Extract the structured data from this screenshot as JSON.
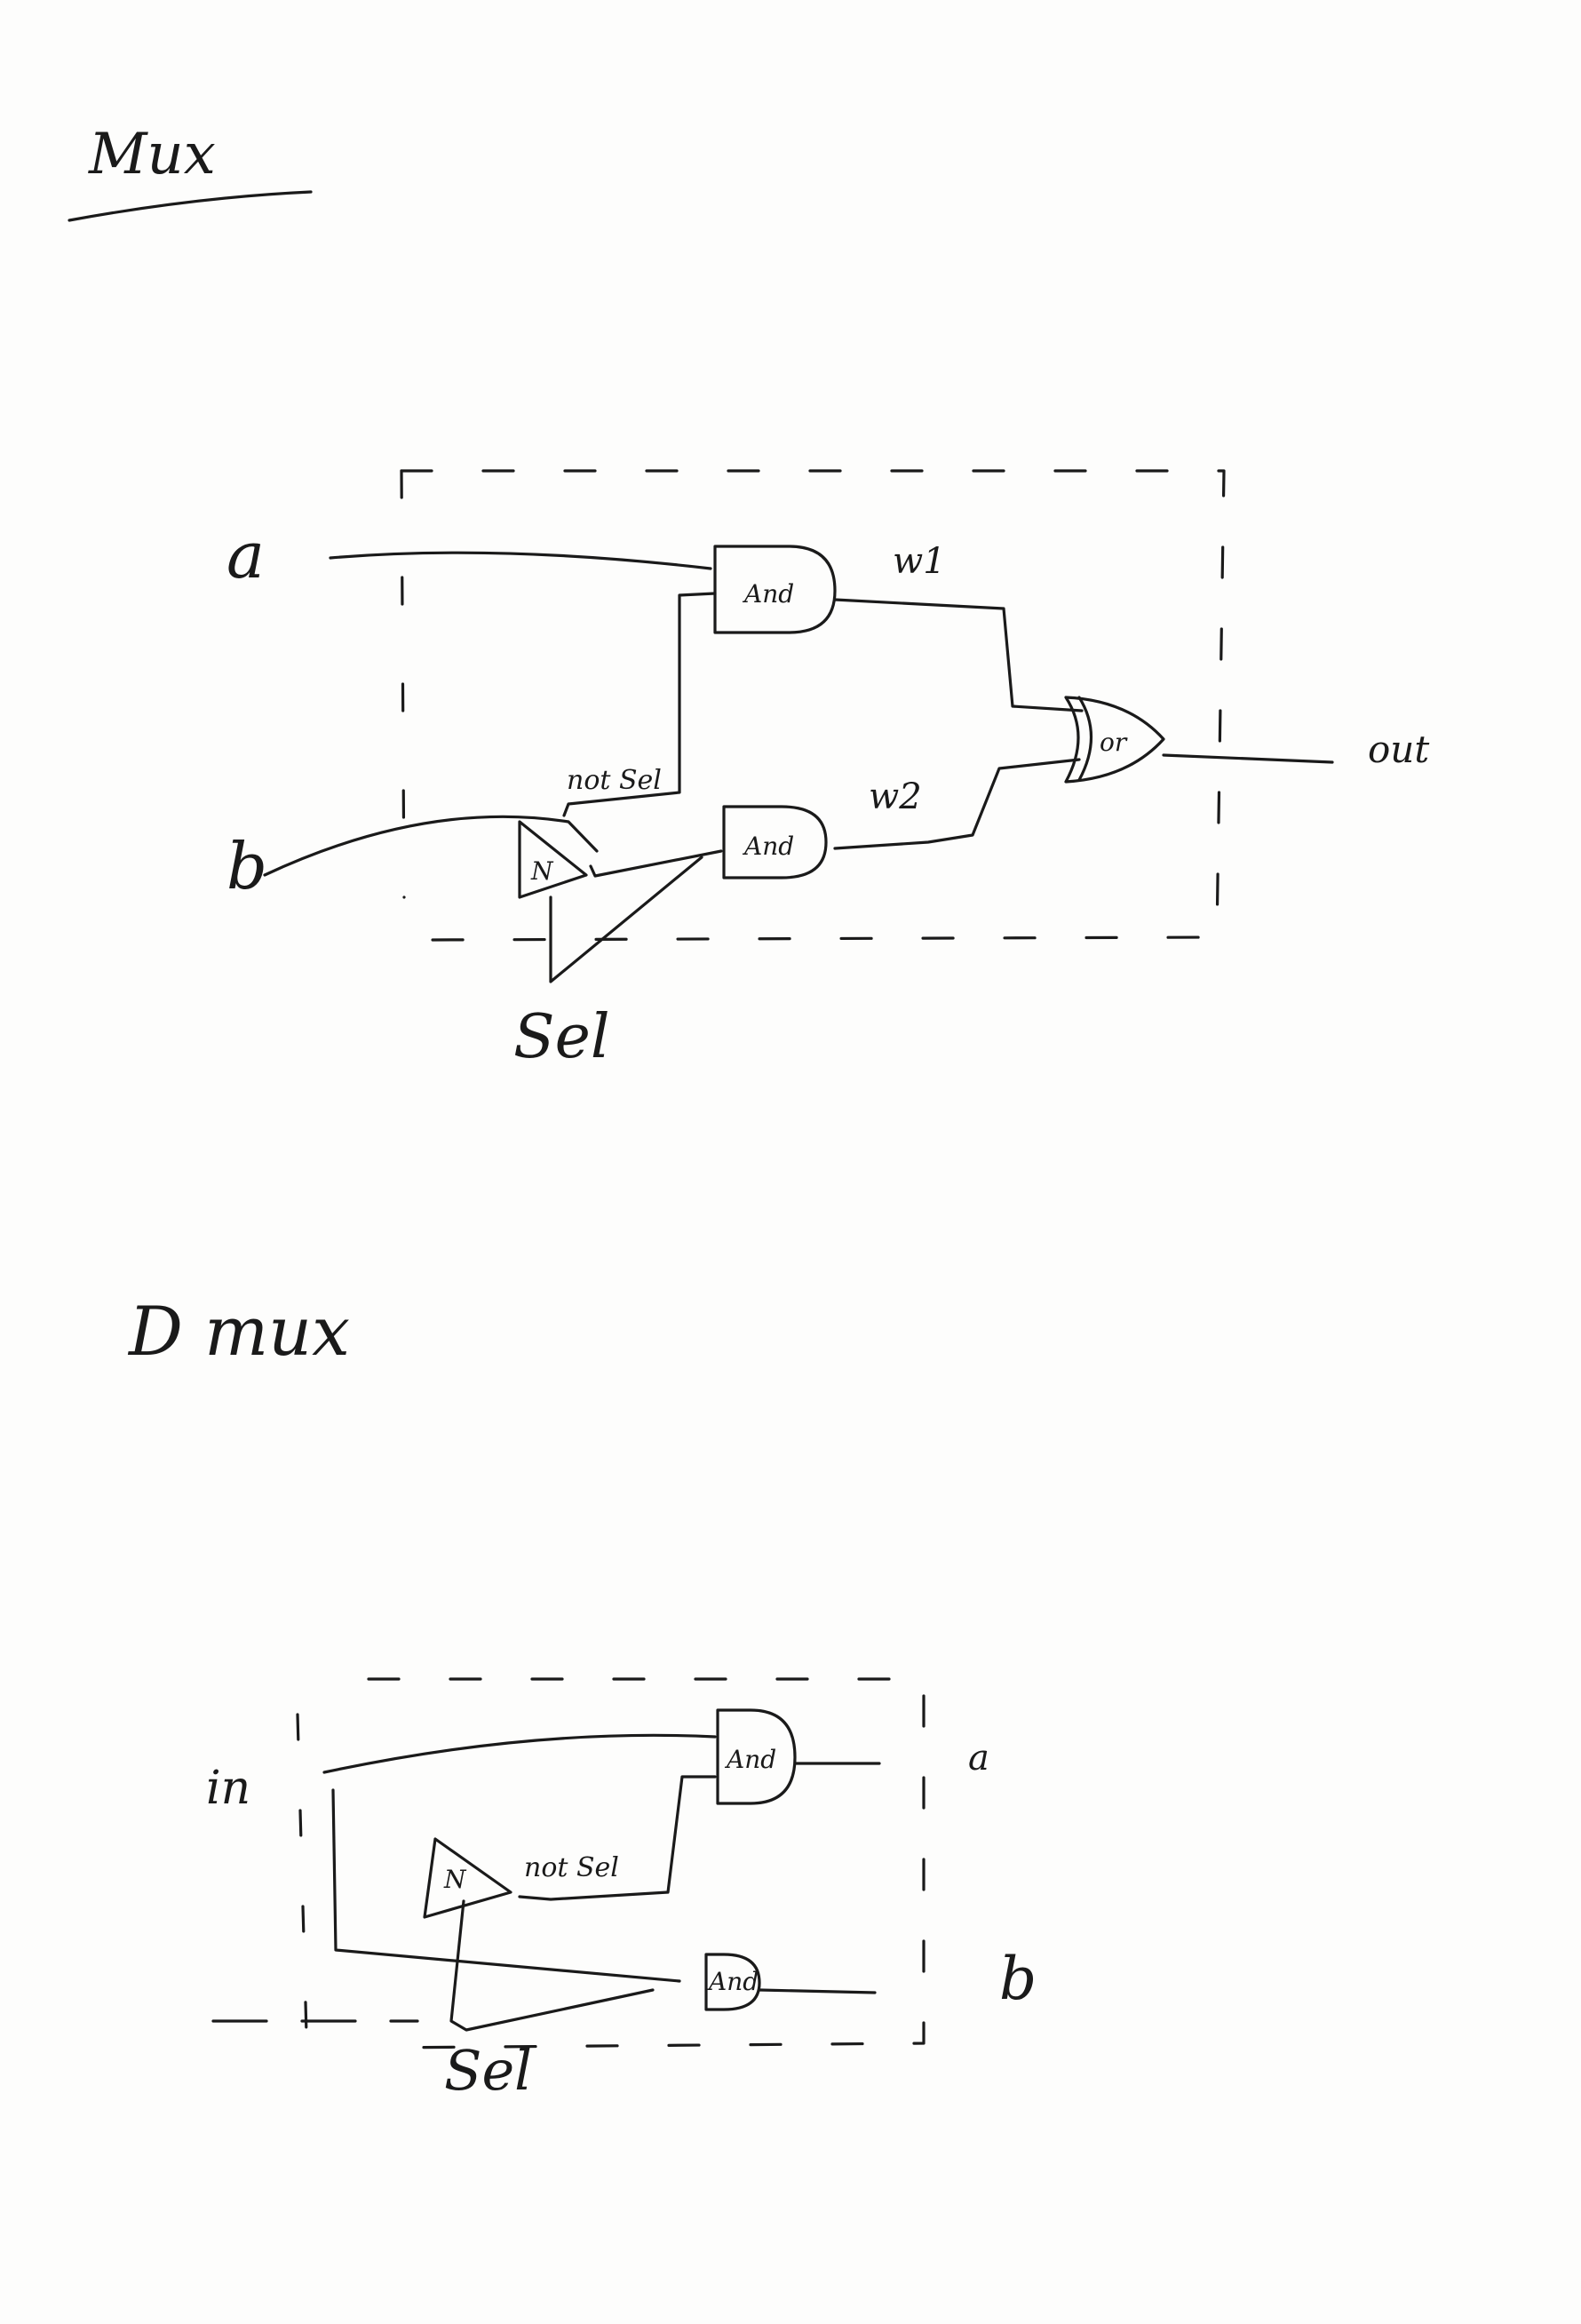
{
  "mux": {
    "title": "Mux",
    "inputs": {
      "a": "a",
      "b": "b",
      "sel": "Sel"
    },
    "output": "out",
    "wires": {
      "w1": "w1",
      "w2": "w2",
      "not_sel": "not Sel"
    },
    "gates": {
      "and1": "And",
      "and2": "And",
      "or": "or",
      "not": "N"
    }
  },
  "dmux": {
    "title": "D mux",
    "inputs": {
      "in": "in",
      "sel": "Sel"
    },
    "outputs": {
      "a": "a",
      "b": "b"
    },
    "wires": {
      "not_sel": "not Sel"
    },
    "gates": {
      "and1": "And",
      "and2": "And",
      "not": "N"
    }
  }
}
